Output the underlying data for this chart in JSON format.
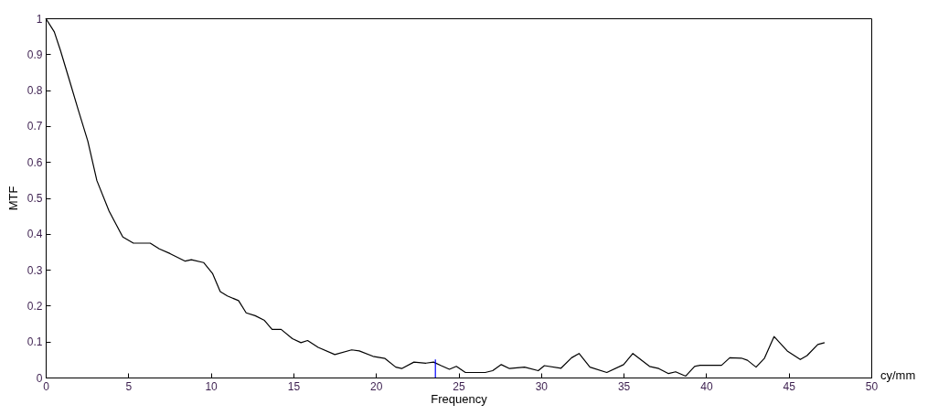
{
  "chart_data": {
    "type": "line",
    "xlabel": "Frequency",
    "ylabel": "MTF",
    "annotations": [
      "cy/mm"
    ],
    "xlim": [
      0,
      50
    ],
    "xticks": [
      0,
      5,
      10,
      15,
      20,
      25,
      30,
      35,
      40,
      45,
      50
    ],
    "ylim": [
      0,
      1
    ],
    "yticks": [
      0,
      0.1,
      0.2,
      0.3,
      0.4,
      0.5,
      0.6,
      0.7,
      0.8,
      0.9,
      1
    ],
    "grid": false,
    "marker": "none",
    "line_style": "solid",
    "series": [
      {
        "color": "#000000",
        "x": [
          0,
          0.52,
          0.89,
          1.44,
          1.99,
          2.55,
          3.1,
          3.84,
          4.67,
          5.31,
          6.33,
          6.88,
          7.53,
          8.45,
          8.82,
          9.56,
          10.1,
          10.57,
          11.0,
          11.68,
          12.14,
          12.69,
          13.25,
          13.71,
          14.26,
          14.94,
          15.46,
          15.86,
          16.5,
          17.51,
          18.53,
          18.99,
          19.82,
          20.55,
          21.2,
          21.56,
          22.3,
          23.03,
          23.49,
          23.95,
          24.45,
          24.87,
          25.42,
          26.62,
          27.07,
          27.59,
          28.09,
          29.0,
          29.83,
          30.2,
          31.21,
          31.85,
          32.3,
          32.96,
          33.98,
          35.0,
          35.56,
          36.57,
          37.13,
          37.72,
          38.15,
          38.76,
          39.3,
          39.63,
          40.93,
          41.43,
          42.13,
          42.5,
          43.02,
          43.52,
          44.11,
          44.91,
          45.7,
          46.11,
          46.76,
          47.17
        ],
        "values": [
          1.0,
          0.962,
          0.911,
          0.827,
          0.742,
          0.658,
          0.548,
          0.463,
          0.391,
          0.374,
          0.374,
          0.358,
          0.345,
          0.324,
          0.328,
          0.32,
          0.29,
          0.239,
          0.227,
          0.214,
          0.18,
          0.172,
          0.159,
          0.134,
          0.134,
          0.108,
          0.097,
          0.103,
          0.084,
          0.064,
          0.077,
          0.074,
          0.059,
          0.053,
          0.029,
          0.025,
          0.043,
          0.04,
          0.043,
          0.033,
          0.023,
          0.031,
          0.014,
          0.014,
          0.019,
          0.036,
          0.025,
          0.029,
          0.019,
          0.033,
          0.026,
          0.055,
          0.067,
          0.029,
          0.014,
          0.036,
          0.067,
          0.031,
          0.025,
          0.011,
          0.016,
          0.004,
          0.031,
          0.034,
          0.034,
          0.055,
          0.054,
          0.048,
          0.029,
          0.053,
          0.114,
          0.074,
          0.05,
          0.061,
          0.092,
          0.097
        ]
      },
      {
        "color": "#0000ff",
        "x": [
          23.6,
          23.6
        ],
        "values": [
          0,
          0.05
        ]
      }
    ]
  }
}
